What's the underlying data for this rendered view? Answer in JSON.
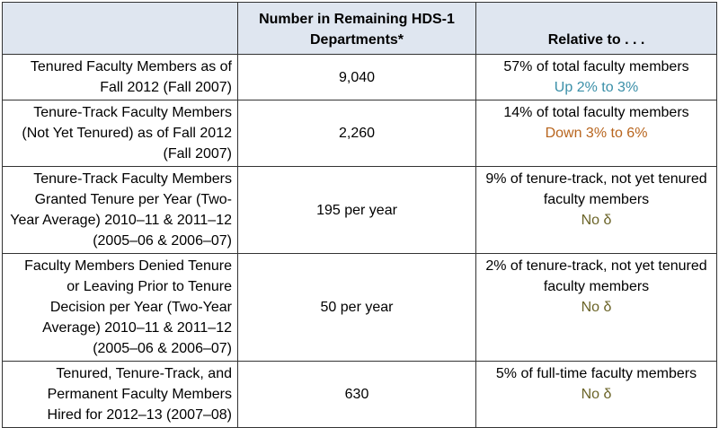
{
  "header": {
    "col1": "",
    "col2": "Number in Remaining HDS-1 Departments*",
    "col3": "Relative to . . ."
  },
  "rows": [
    {
      "label": "Tenured Faculty Members as of Fall 2012 (Fall 2007)",
      "number": "9,040",
      "relative": "57% of total faculty members",
      "change": "Up 2% to 3%",
      "change_color": "#3a8fa8"
    },
    {
      "label": "Tenure-Track Faculty Members (Not Yet Tenured) as of Fall 2012 (Fall 2007)",
      "number": "2,260",
      "relative": "14% of total faculty members",
      "change": "Down 3% to 6%",
      "change_color": "#b8651e"
    },
    {
      "label": "Tenure-Track Faculty Members Granted Tenure per Year (Two-Year Average) 2010–11 & 2011–12 (2005–06 & 2006–07)",
      "number": "195 per year",
      "relative": "9% of tenure-track, not yet tenured faculty members",
      "change": "No δ",
      "change_color": "#6b6428"
    },
    {
      "label": "Faculty Members Denied Tenure or Leaving Prior to Tenure Decision per Year (Two-Year Average) 2010–11 & 2011–12 (2005–06 & 2006–07)",
      "number": "50 per year",
      "relative": "2% of tenure-track, not yet tenured faculty members",
      "change": "No δ",
      "change_color": "#6b6428"
    },
    {
      "label": "Tenured, Tenure-Track, and Permanent Faculty Members Hired for 2012–13 (2007–08)",
      "number": "630",
      "relative": "5% of full-time faculty members",
      "change": "No δ",
      "change_color": "#6b6428"
    }
  ]
}
